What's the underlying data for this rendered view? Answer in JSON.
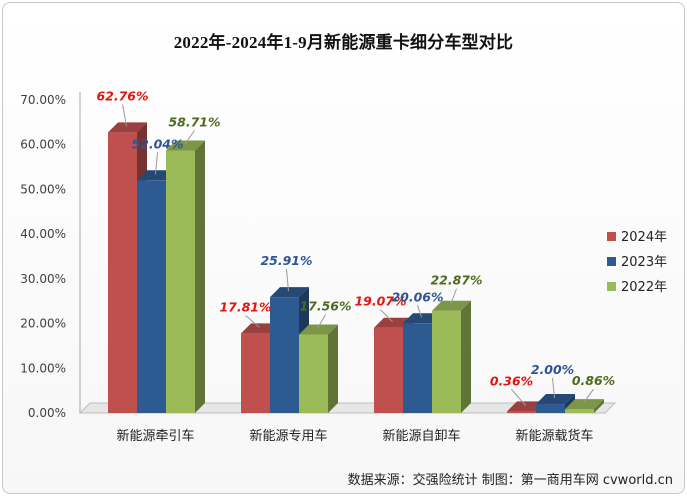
{
  "chart_data": {
    "type": "bar",
    "title": "2022年-2024年1-9月新能源重卡细分车型对比",
    "categories": [
      "新能源牵引车",
      "新能源专用车",
      "新能源自卸车",
      "新能源载货车"
    ],
    "series": [
      {
        "name": "2024年",
        "values": [
          62.76,
          17.81,
          19.07,
          0.36
        ],
        "labels": [
          "62.76%",
          "17.81%",
          "19.07%",
          "0.36%"
        ],
        "color": "#c0504d",
        "label_color": "#e3150f"
      },
      {
        "name": "2023年",
        "values": [
          52.04,
          25.91,
          20.06,
          2.0
        ],
        "labels": [
          "52.04%",
          "25.91%",
          "20.06%",
          "2.00%"
        ],
        "color": "#2e5a92",
        "label_color": "#2f5594"
      },
      {
        "name": "2022年",
        "values": [
          58.71,
          17.56,
          22.87,
          0.86
        ],
        "labels": [
          "58.71%",
          "17.56%",
          "22.87%",
          "0.86%"
        ],
        "color": "#9bbb59",
        "label_color": "#4f6a1e"
      }
    ],
    "y_ticks": [
      "0.00%",
      "10.00%",
      "20.00%",
      "30.00%",
      "40.00%",
      "50.00%",
      "60.00%",
      "70.00%"
    ],
    "ylim": [
      0,
      70
    ],
    "grid": false,
    "legend_position": "right"
  },
  "footer": {
    "source": "数据来源：交强险统计  制图：第一商用车网 cvworld.cn"
  }
}
